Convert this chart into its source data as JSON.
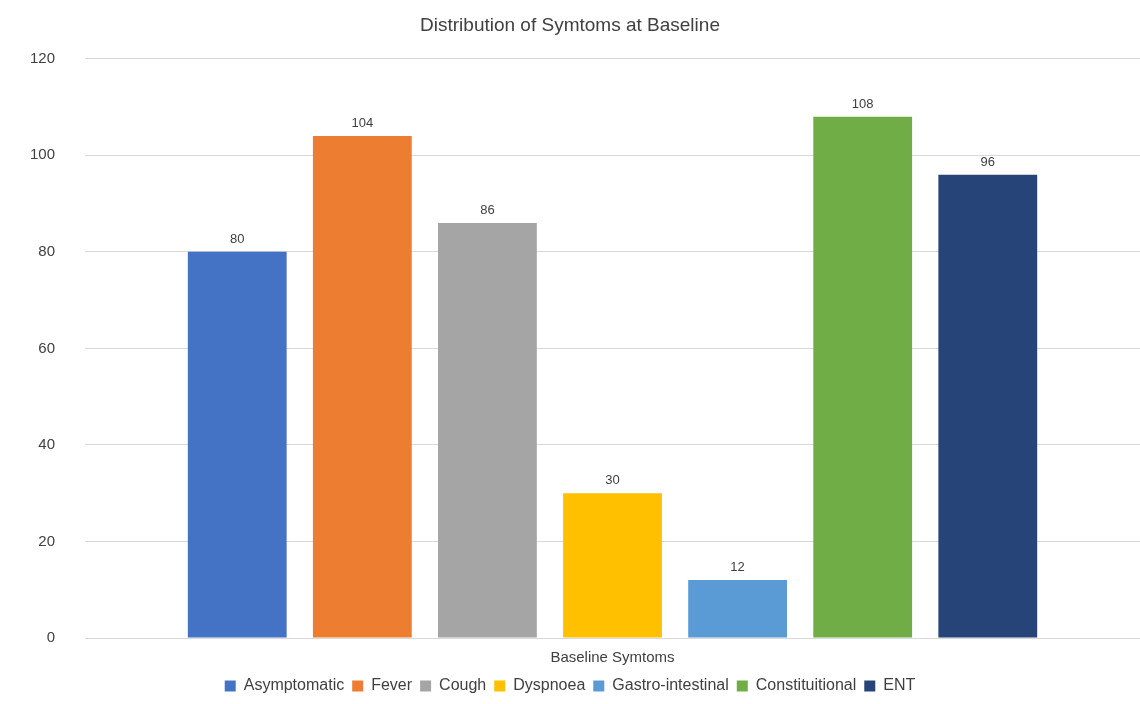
{
  "chart_data": {
    "type": "bar",
    "title": "Distribution of Symtoms at Baseline",
    "categories": [
      "Baseline Symtoms"
    ],
    "series": [
      {
        "name": "Asymptomatic",
        "color": "#4472c4",
        "values": [
          80
        ]
      },
      {
        "name": "Fever",
        "color": "#ed7d31",
        "values": [
          104
        ]
      },
      {
        "name": "Cough",
        "color": "#a5a5a5",
        "values": [
          86
        ]
      },
      {
        "name": "Dyspnoea",
        "color": "#ffc000",
        "values": [
          30
        ]
      },
      {
        "name": "Gastro-intestinal",
        "color": "#5b9bd5",
        "values": [
          12
        ]
      },
      {
        "name": "Constituitional",
        "color": "#70ad47",
        "values": [
          108
        ]
      },
      {
        "name": "ENT",
        "color": "#264478",
        "values": [
          96
        ]
      }
    ],
    "ylim": [
      0,
      120
    ],
    "yticks": [
      0,
      20,
      40,
      60,
      80,
      100,
      120
    ],
    "grid": "y",
    "legend": "bottom",
    "data_labels": true
  }
}
